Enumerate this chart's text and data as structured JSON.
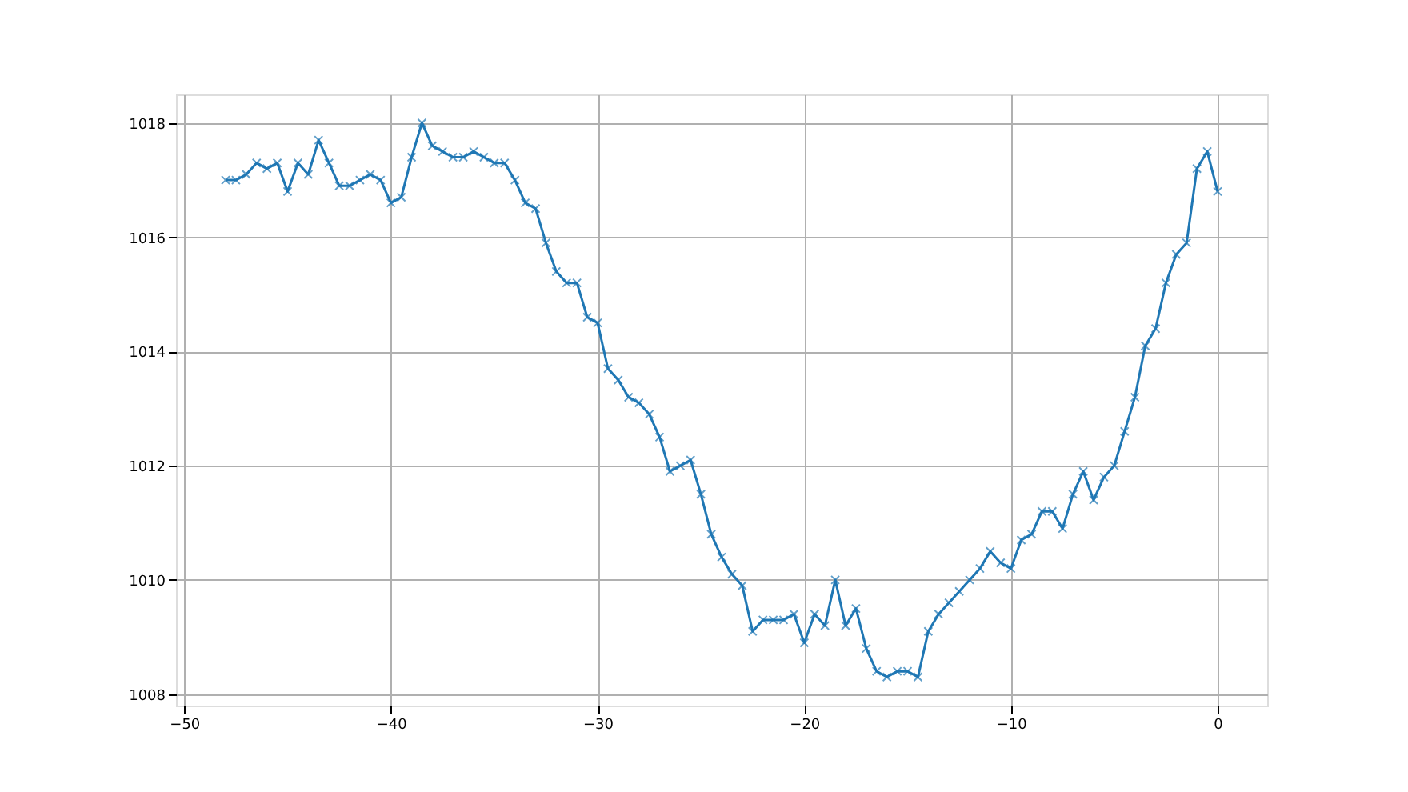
{
  "chart_data": {
    "type": "line",
    "x": [
      -48,
      -47.5,
      -47,
      -46.5,
      -46,
      -45.5,
      -45,
      -44.5,
      -44,
      -43.5,
      -43,
      -42.5,
      -42,
      -41.5,
      -41,
      -40.5,
      -40,
      -39.5,
      -39,
      -38.5,
      -38,
      -37.5,
      -37,
      -36.5,
      -36,
      -35.5,
      -35,
      -34.5,
      -34,
      -33.5,
      -33,
      -32.5,
      -32,
      -31.5,
      -31,
      -30.5,
      -30,
      -29.5,
      -29,
      -28.5,
      -28,
      -27.5,
      -27,
      -26.5,
      -26,
      -25.5,
      -25,
      -24.5,
      -24,
      -23.5,
      -23,
      -22.5,
      -22,
      -21.5,
      -21,
      -20.5,
      -20,
      -19.5,
      -19,
      -18.5,
      -18,
      -17.5,
      -17,
      -16.5,
      -16,
      -15.5,
      -15,
      -14.5,
      -14,
      -13.5,
      -13,
      -12.5,
      -12,
      -11.5,
      -11,
      -10.5,
      -10,
      -9.5,
      -9,
      -8.5,
      -8,
      -7.5,
      -7,
      -6.5,
      -6,
      -5.5,
      -5,
      -4.5,
      -4,
      -3.5,
      -3,
      -2.5,
      -2,
      -1.5,
      -1,
      -0.5,
      0
    ],
    "series": [
      {
        "color": "#1f77b4",
        "values": [
          1017.0,
          1017.0,
          1017.1,
          1017.3,
          1017.2,
          1017.3,
          1016.8,
          1017.3,
          1017.1,
          1017.7,
          1017.3,
          1016.9,
          1016.9,
          1017.0,
          1017.1,
          1017.0,
          1016.6,
          1016.7,
          1017.4,
          1018.0,
          1017.6,
          1017.5,
          1017.4,
          1017.4,
          1017.5,
          1017.4,
          1017.3,
          1017.3,
          1017.0,
          1016.6,
          1016.5,
          1015.9,
          1015.4,
          1015.2,
          1015.2,
          1014.6,
          1014.5,
          1013.7,
          1013.5,
          1013.2,
          1013.1,
          1012.9,
          1012.5,
          1011.9,
          1012.0,
          1012.1,
          1011.5,
          1010.8,
          1010.4,
          1010.1,
          1009.9,
          1009.1,
          1009.3,
          1009.3,
          1009.3,
          1009.4,
          1008.9,
          1009.4,
          1009.2,
          1010.0,
          1009.2,
          1009.5,
          1008.8,
          1008.4,
          1008.3,
          1008.4,
          1008.4,
          1008.3,
          1009.1,
          1009.4,
          1009.6,
          1009.8,
          1010.0,
          1010.2,
          1010.5,
          1010.3,
          1010.2,
          1010.7,
          1010.8,
          1011.2,
          1011.2,
          1010.9,
          1011.5,
          1011.9,
          1011.4,
          1011.8,
          1012.0,
          1012.6,
          1013.2,
          1014.1,
          1014.4,
          1015.2,
          1015.7,
          1015.9,
          1017.2,
          1017.5,
          1016.8
        ]
      }
    ],
    "xlim": [
      -50.4,
      2.4
    ],
    "xticks": [
      -50,
      -40,
      -30,
      -20,
      -10,
      0
    ],
    "ylim": [
      1007.8,
      1018.5
    ],
    "yticks": [
      1008,
      1010,
      1012,
      1014,
      1016,
      1018
    ],
    "grid": true,
    "marker": "cross",
    "line_style": "solid"
  }
}
